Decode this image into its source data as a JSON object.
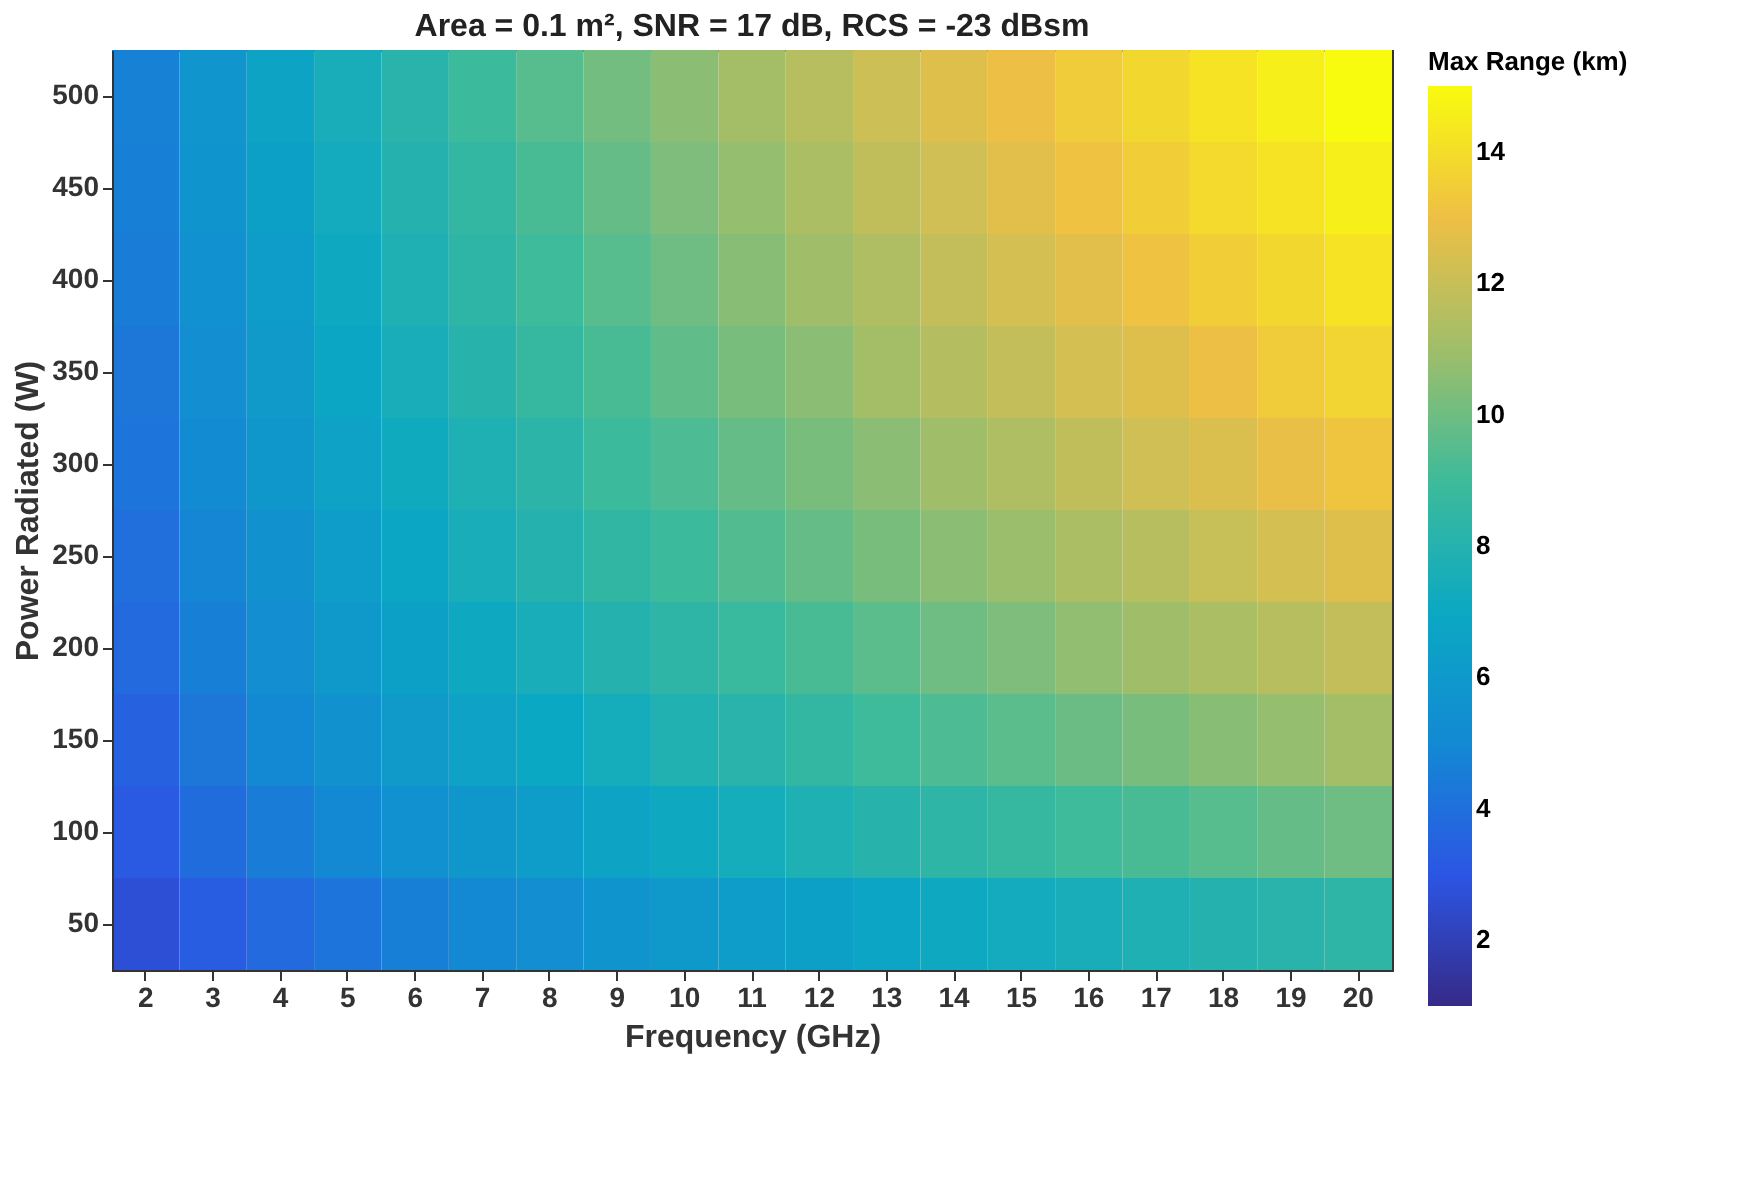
{
  "chart_data": {
    "type": "heatmap",
    "title": "Area = 0.1 m², SNR = 17 dB, RCS = -23 dBsm",
    "xlabel": "Frequency (GHz)",
    "ylabel": "Power Radiated (W)",
    "clabel": "Max Range (km)",
    "categories": [
      "2",
      "3",
      "4",
      "5",
      "6",
      "7",
      "8",
      "9",
      "10",
      "11",
      "12",
      "13",
      "14",
      "15",
      "16",
      "17",
      "18",
      "19",
      "20"
    ],
    "y_categories": [
      "500",
      "450",
      "400",
      "350",
      "300",
      "250",
      "200",
      "150",
      "100",
      "50"
    ],
    "cells": [
      [
        4.7,
        5.8,
        6.7,
        7.5,
        8.2,
        8.9,
        9.5,
        10.1,
        10.6,
        11.1,
        11.6,
        12.1,
        12.6,
        13.0,
        13.4,
        13.8,
        14.2,
        14.6,
        15.0
      ],
      [
        4.6,
        5.7,
        6.5,
        7.3,
        8.0,
        8.6,
        9.2,
        9.8,
        10.3,
        10.8,
        11.3,
        11.8,
        12.2,
        12.7,
        13.1,
        13.5,
        13.9,
        14.2,
        14.6
      ],
      [
        4.5,
        5.5,
        6.3,
        7.1,
        7.8,
        8.4,
        9.0,
        9.5,
        10.0,
        10.5,
        11.0,
        11.4,
        11.9,
        12.3,
        12.7,
        13.1,
        13.5,
        13.8,
        14.2
      ],
      [
        4.3,
        5.3,
        6.1,
        6.9,
        7.5,
        8.1,
        8.7,
        9.2,
        9.7,
        10.2,
        10.6,
        11.1,
        11.5,
        11.9,
        12.3,
        12.6,
        13.0,
        13.4,
        13.7
      ],
      [
        4.2,
        5.1,
        5.9,
        6.6,
        7.2,
        7.8,
        8.3,
        8.9,
        9.3,
        9.8,
        10.2,
        10.6,
        11.0,
        11.4,
        11.8,
        12.2,
        12.5,
        12.9,
        13.2
      ],
      [
        4.0,
        4.9,
        5.6,
        6.3,
        6.9,
        7.5,
        8.0,
        8.5,
        8.9,
        9.4,
        9.8,
        10.2,
        10.6,
        10.9,
        11.3,
        11.6,
        12.0,
        12.3,
        12.6
      ],
      [
        3.8,
        4.6,
        5.3,
        6.0,
        6.5,
        7.1,
        7.5,
        8.0,
        8.4,
        8.8,
        9.2,
        9.6,
        10.0,
        10.3,
        10.7,
        11.0,
        11.3,
        11.6,
        11.9
      ],
      [
        3.5,
        4.3,
        5.0,
        5.6,
        6.1,
        6.6,
        7.0,
        7.4,
        7.9,
        8.2,
        8.6,
        9.0,
        9.3,
        9.6,
        9.9,
        10.2,
        10.5,
        10.8,
        11.1
      ],
      [
        3.2,
        3.9,
        4.5,
        5.0,
        5.5,
        5.9,
        6.3,
        6.7,
        7.1,
        7.4,
        7.8,
        8.1,
        8.4,
        8.7,
        9.0,
        9.2,
        9.5,
        9.8,
        10.0
      ],
      [
        2.7,
        3.3,
        3.8,
        4.2,
        4.6,
        5.0,
        5.3,
        5.7,
        6.0,
        6.3,
        6.5,
        6.8,
        7.1,
        7.3,
        7.5,
        7.8,
        8.0,
        8.2,
        8.4
      ]
    ],
    "clim": [
      1,
      15
    ],
    "cticks": [
      2,
      4,
      6,
      8,
      10,
      12,
      14
    ],
    "grid": false
  }
}
